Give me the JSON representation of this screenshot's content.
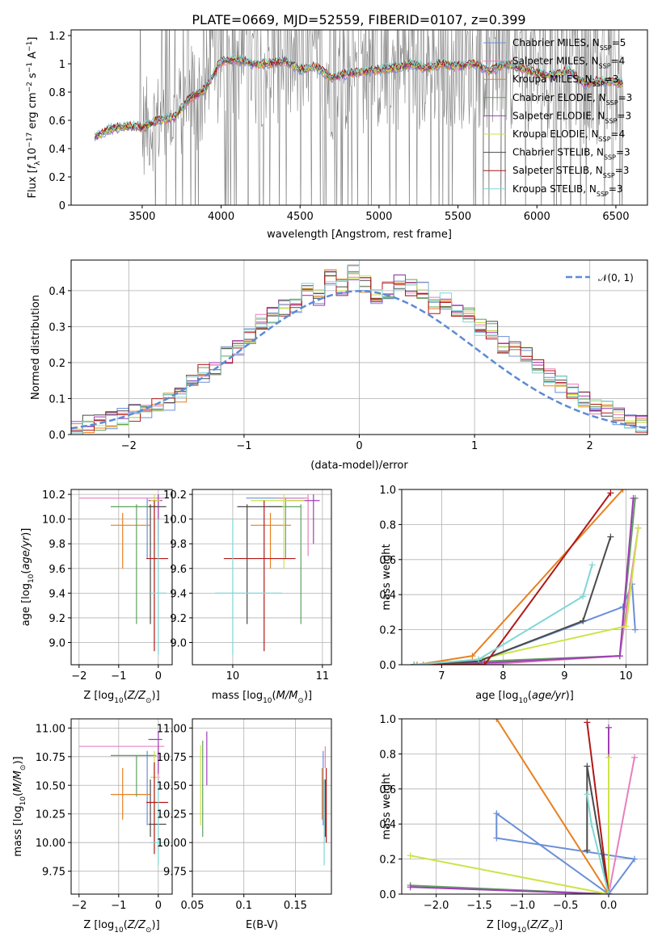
{
  "figure": {
    "title": "PLATE=0669, MJD=52559, FIBERID=0107, z=0.399"
  },
  "models": [
    {
      "label": "Chabrier MILES, N_SSP=5",
      "color": "#6a8fd8"
    },
    {
      "label": "Salpeter MILES, N_SSP=4",
      "color": "#e87fc0"
    },
    {
      "label": "Kroupa MILES, N_SSP=3",
      "color": "#e8801f"
    },
    {
      "label": "Chabrier ELODIE, N_SSP=3",
      "color": "#5fa05f"
    },
    {
      "label": "Salpeter ELODIE, N_SSP=3",
      "color": "#9e3fb5"
    },
    {
      "label": "Kroupa ELODIE, N_SSP=4",
      "color": "#cde346"
    },
    {
      "label": "Chabrier STELIB, N_SSP=3",
      "color": "#4a4a4a"
    },
    {
      "label": "Salpeter STELIB, N_SSP=3",
      "color": "#b01818"
    },
    {
      "label": "Kroupa STELIB, N_SSP=3",
      "color": "#7fd6d6"
    }
  ],
  "chart_data": [
    {
      "id": "spectrum",
      "type": "line",
      "title": "PLATE=0669, MJD=52559, FIBERID=0107, z=0.399",
      "xlabel": "wavelength [Angstrom, rest frame]",
      "ylabel": "Flux [f_λ 10^-17 erg cm^-2 s^-1 A^-1]",
      "xlim": [
        3050,
        6700
      ],
      "ylim": [
        0,
        1.24
      ],
      "xticks": [
        3500,
        4000,
        4500,
        5000,
        5500,
        6000,
        6500
      ],
      "yticks": [
        0.0,
        0.2,
        0.4,
        0.6,
        0.8,
        1.0,
        1.2
      ],
      "legend": "top-right",
      "data_color": "#808080",
      "continuum_x": [
        3200,
        3300,
        3400,
        3500,
        3600,
        3700,
        3800,
        3900,
        4000,
        4100,
        4200,
        4300,
        4400,
        4500,
        4600,
        4700,
        4800,
        4900,
        5000,
        5100,
        5200,
        5300,
        5400,
        5500,
        5600,
        5700,
        5800,
        5900,
        6000,
        6100,
        6200,
        6300,
        6400,
        6500,
        6550
      ],
      "continuum_y": [
        0.48,
        0.54,
        0.56,
        0.55,
        0.6,
        0.62,
        0.75,
        0.82,
        1.02,
        1.03,
        1.0,
        1.0,
        1.02,
        0.96,
        0.98,
        0.9,
        0.93,
        0.94,
        0.96,
        0.97,
        1.0,
        0.97,
        1.0,
        0.98,
        1.0,
        0.95,
        1.0,
        0.97,
        0.93,
        0.92,
        0.95,
        0.86,
        0.88,
        0.87,
        0.86
      ]
    },
    {
      "id": "residuals",
      "type": "line",
      "xlabel": "(data-model)/error",
      "ylabel": "Normed distribution",
      "xlim": [
        -2.5,
        2.5
      ],
      "ylim": [
        0,
        0.485
      ],
      "xticks": [
        -2,
        -1,
        0,
        1,
        2
      ],
      "yticks": [
        0.0,
        0.1,
        0.2,
        0.3,
        0.4
      ],
      "grid": true,
      "legend": "top-right",
      "gaussian_label": "𝒩(0, 1)",
      "gaussian_color": "#5b8bd6",
      "bin_edges_start": -2.5,
      "bin_width": 0.1,
      "hist_base": [
        0.02,
        0.03,
        0.03,
        0.04,
        0.05,
        0.06,
        0.06,
        0.08,
        0.09,
        0.11,
        0.15,
        0.17,
        0.19,
        0.22,
        0.24,
        0.27,
        0.31,
        0.33,
        0.35,
        0.36,
        0.4,
        0.38,
        0.44,
        0.41,
        0.45,
        0.42,
        0.38,
        0.4,
        0.42,
        0.41,
        0.4,
        0.36,
        0.37,
        0.34,
        0.33,
        0.3,
        0.29,
        0.25,
        0.24,
        0.22,
        0.19,
        0.16,
        0.14,
        0.12,
        0.1,
        0.08,
        0.07,
        0.05,
        0.04,
        0.03
      ]
    },
    {
      "id": "age-vs-Z",
      "type": "scatter",
      "xlabel": "Z [log10(Z/Z⊙)]",
      "ylabel": "age [log10(age/yr)]",
      "xlim": [
        -2.2,
        0.35
      ],
      "ylim": [
        8.82,
        10.24
      ],
      "xticks": [
        -2,
        -1,
        0
      ],
      "yticks": [
        9.0,
        9.2,
        9.4,
        9.6,
        9.8,
        10.0,
        10.2
      ],
      "grid": true
    },
    {
      "id": "age-vs-mass",
      "type": "scatter",
      "xlabel": "mass [log10(M/M⊙)]",
      "ylabel": "",
      "xlim": [
        9.55,
        11.1
      ],
      "ylim": [
        8.82,
        10.24
      ],
      "xticks": [
        10,
        11
      ],
      "yticks": [
        9.0,
        9.2,
        9.4,
        9.6,
        9.8,
        10.0,
        10.2
      ],
      "grid": true
    },
    {
      "id": "cum-weight-age",
      "type": "line",
      "xlabel": "age [log10(age/yr)]",
      "ylabel": "mass weight",
      "xlim": [
        6.35,
        10.35
      ],
      "ylim": [
        0,
        1.0
      ],
      "xticks": [
        7,
        8,
        9,
        10
      ],
      "yticks": [
        0.0,
        0.2,
        0.4,
        0.6,
        0.8,
        1.0
      ],
      "grid": true
    },
    {
      "id": "mass-vs-Z",
      "type": "scatter",
      "xlabel": "Z [log10(Z/Z⊙)]",
      "ylabel": "mass [log10(M/M⊙)]",
      "xlim": [
        -2.2,
        0.35
      ],
      "ylim": [
        9.55,
        11.08
      ],
      "xticks": [
        -2,
        -1,
        0
      ],
      "yticks": [
        9.75,
        10.0,
        10.25,
        10.5,
        10.75,
        11.0
      ],
      "grid": true
    },
    {
      "id": "mass-vs-ebv",
      "type": "scatter",
      "xlabel": "E(B-V)",
      "ylabel": "",
      "xlim": [
        0.05,
        0.185
      ],
      "ylim": [
        9.55,
        11.08
      ],
      "xticks": [
        0.05,
        0.1,
        0.15
      ],
      "yticks": [
        9.75,
        10.0,
        10.25,
        10.5,
        10.75,
        11.0
      ],
      "grid": true
    },
    {
      "id": "cum-weight-Z",
      "type": "line",
      "xlabel": "Z [log10(Z/Z⊙)]",
      "ylabel": "mass weight",
      "xlim": [
        -2.4,
        0.45
      ],
      "ylim": [
        0,
        1.0
      ],
      "xticks": [
        -2.0,
        -1.5,
        -1.0,
        -0.5,
        0.0
      ],
      "yticks": [
        0.0,
        0.2,
        0.4,
        0.6,
        0.8,
        1.0
      ],
      "grid": true
    }
  ],
  "fits": [
    {
      "Z": -0.28,
      "Zlo": -0.3,
      "Zhi": -0.3,
      "age": 10.17,
      "ageLo": 9.68,
      "ageHi": 10.17,
      "mass": 10.59,
      "massLo": 10.15,
      "massHi": 10.8,
      "ebv": 0.177,
      "ebvLo": 10.15,
      "ebvHi": 10.8,
      "ageCurve": [
        [
          6.55,
          0.0
        ],
        [
          7.6,
          0.02
        ],
        [
          9.95,
          0.33
        ],
        [
          10.1,
          0.46
        ],
        [
          10.15,
          0.2
        ]
      ],
      "zCurve": [
        [
          0.0,
          0.0
        ],
        [
          0.3,
          0.2
        ],
        [
          -1.3,
          0.32
        ],
        [
          -1.3,
          0.46
        ],
        [
          0.0,
          0.0
        ]
      ]
    },
    {
      "Z": 0.0,
      "Zlo": -2.0,
      "Zhi": 0.15,
      "age": 10.17,
      "ageLo": 9.7,
      "ageHi": 10.2,
      "mass": 10.84,
      "massLo": 10.5,
      "massHi": 10.84,
      "ebv": 0.179,
      "ebvLo": 10.65,
      "ebvHi": 10.84,
      "ageCurve": [
        [
          6.7,
          0.0
        ],
        [
          7.65,
          0.0
        ],
        [
          9.9,
          0.05
        ],
        [
          10.2,
          0.78
        ]
      ],
      "zCurve": [
        [
          0.0,
          0.0
        ],
        [
          0.3,
          0.78
        ]
      ]
    },
    {
      "Z": -0.9,
      "Zlo": -1.2,
      "Zhi": -0.2,
      "age": 9.95,
      "ageLo": 9.6,
      "ageHi": 10.05,
      "mass": 10.42,
      "massLo": 10.2,
      "massHi": 10.65,
      "ebv": 0.176,
      "ebvLo": 10.2,
      "ebvHi": 10.65,
      "ageCurve": [
        [
          6.6,
          0.0
        ],
        [
          7.5,
          0.05
        ],
        [
          9.95,
          1.0
        ]
      ],
      "zCurve": [
        [
          -1.3,
          1.0
        ],
        [
          0.0,
          0.0
        ]
      ]
    },
    {
      "Z": -0.55,
      "Zlo": -1.2,
      "Zhi": -0.05,
      "age": 10.1,
      "ageLo": 9.15,
      "ageHi": 10.12,
      "mass": 10.76,
      "massLo": 10.4,
      "massHi": 10.76,
      "ebv": 0.06,
      "ebvLo": 10.05,
      "ebvHi": 10.89,
      "ageCurve": [
        [
          6.55,
          0.0
        ],
        [
          7.7,
          0.02
        ],
        [
          9.9,
          0.05
        ],
        [
          10.15,
          0.95
        ]
      ],
      "zCurve": [
        [
          -2.3,
          0.05
        ],
        [
          0.0,
          0.0
        ],
        [
          0.0,
          0.95
        ]
      ]
    },
    {
      "Z": 0.0,
      "Zlo": -0.25,
      "Zhi": 0.1,
      "age": 10.15,
      "ageLo": 9.8,
      "ageHi": 10.2,
      "mass": 10.9,
      "massLo": 10.6,
      "massHi": 10.97,
      "ebv": 0.064,
      "ebvLo": 10.5,
      "ebvHi": 10.97,
      "ageCurve": [
        [
          6.55,
          0.0
        ],
        [
          7.7,
          0.01
        ],
        [
          9.9,
          0.05
        ],
        [
          10.12,
          0.95
        ]
      ],
      "zCurve": [
        [
          -2.3,
          0.04
        ],
        [
          0.0,
          0.0
        ],
        [
          0.0,
          0.95
        ]
      ]
    },
    {
      "Z": -0.1,
      "Zlo": -0.2,
      "Zhi": 0.05,
      "age": 10.15,
      "ageLo": 9.6,
      "ageHi": 10.2,
      "mass": 10.57,
      "massLo": 10.2,
      "massHi": 10.8,
      "ebv": 0.058,
      "ebvLo": 10.15,
      "ebvHi": 10.85,
      "ageCurve": [
        [
          6.55,
          0.0
        ],
        [
          7.6,
          0.03
        ],
        [
          10.0,
          0.22
        ],
        [
          10.2,
          0.78
        ]
      ],
      "zCurve": [
        [
          -2.3,
          0.22
        ],
        [
          0.0,
          0.0
        ],
        [
          0.0,
          0.78
        ]
      ]
    },
    {
      "Z": -0.2,
      "Zlo": -0.25,
      "Zhi": 0.2,
      "age": 10.1,
      "ageLo": 9.15,
      "ageHi": 10.12,
      "mass": 10.16,
      "massLo": 10.05,
      "massHi": 10.55,
      "ebv": 0.179,
      "ebvLo": 10.05,
      "ebvHi": 10.55,
      "ageCurve": [
        [
          6.55,
          0.0
        ],
        [
          7.6,
          0.02
        ],
        [
          9.3,
          0.25
        ],
        [
          9.75,
          0.73
        ]
      ],
      "zCurve": [
        [
          -0.25,
          0.25
        ],
        [
          -0.25,
          0.73
        ],
        [
          0.0,
          0.0
        ]
      ]
    },
    {
      "Z": -0.1,
      "Zlo": -0.3,
      "Zhi": 0.25,
      "age": 9.68,
      "ageLo": 8.93,
      "ageHi": 10.15,
      "mass": 10.35,
      "massLo": 9.9,
      "massHi": 10.7,
      "ebv": 0.18,
      "ebvLo": 10.0,
      "ebvHi": 10.65,
      "ageCurve": [
        [
          6.55,
          0.0
        ],
        [
          7.7,
          0.0
        ],
        [
          9.75,
          0.98
        ]
      ],
      "zCurve": [
        [
          -0.25,
          0.98
        ],
        [
          0.0,
          0.0
        ]
      ]
    },
    {
      "Z": 0.0,
      "Zlo": -0.2,
      "Zhi": 0.2,
      "age": 9.4,
      "ageLo": 8.9,
      "ageHi": 10.0,
      "mass": 10.0,
      "massLo": 9.8,
      "massHi": 10.55,
      "ebv": 0.178,
      "ebvLo": 9.8,
      "ebvHi": 10.55,
      "ageCurve": [
        [
          6.55,
          0.0
        ],
        [
          7.6,
          0.03
        ],
        [
          9.3,
          0.39
        ],
        [
          9.45,
          0.57
        ]
      ],
      "zCurve": [
        [
          -0.25,
          0.57
        ],
        [
          -0.2,
          0.4
        ],
        [
          0.0,
          0.0
        ]
      ]
    }
  ]
}
